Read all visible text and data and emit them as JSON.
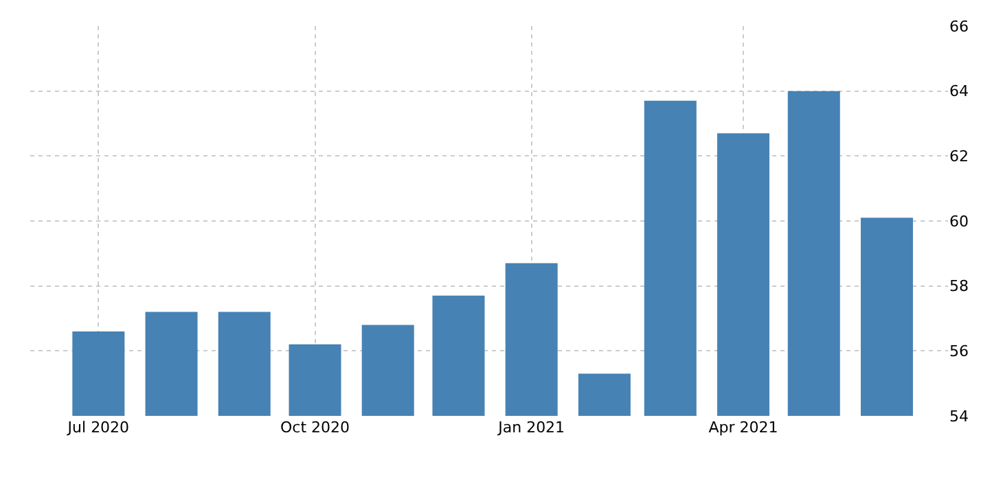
{
  "chart_data": {
    "type": "bar",
    "x": [
      "2020-07",
      "2020-08",
      "2020-09",
      "2020-10",
      "2020-11",
      "2020-12",
      "2021-01",
      "2021-02",
      "2021-03",
      "2021-04",
      "2021-05",
      "2021-06"
    ],
    "values": [
      56.6,
      57.2,
      57.2,
      56.2,
      56.8,
      57.7,
      58.7,
      55.3,
      63.7,
      62.7,
      64.0,
      60.1
    ],
    "color": "#4682b4",
    "xlim": [
      "2020-06-02",
      "2021-06-27"
    ],
    "xticks": [
      {
        "value": "2020-07",
        "label": "Jul 2020"
      },
      {
        "value": "2020-10",
        "label": "Oct 2020"
      },
      {
        "value": "2021-01",
        "label": "Jan 2021"
      },
      {
        "value": "2021-04",
        "label": "Apr 2021"
      }
    ],
    "ylim": [
      54,
      66
    ],
    "yticks": [
      54,
      56,
      58,
      60,
      62,
      64,
      66
    ],
    "grid": true
  }
}
